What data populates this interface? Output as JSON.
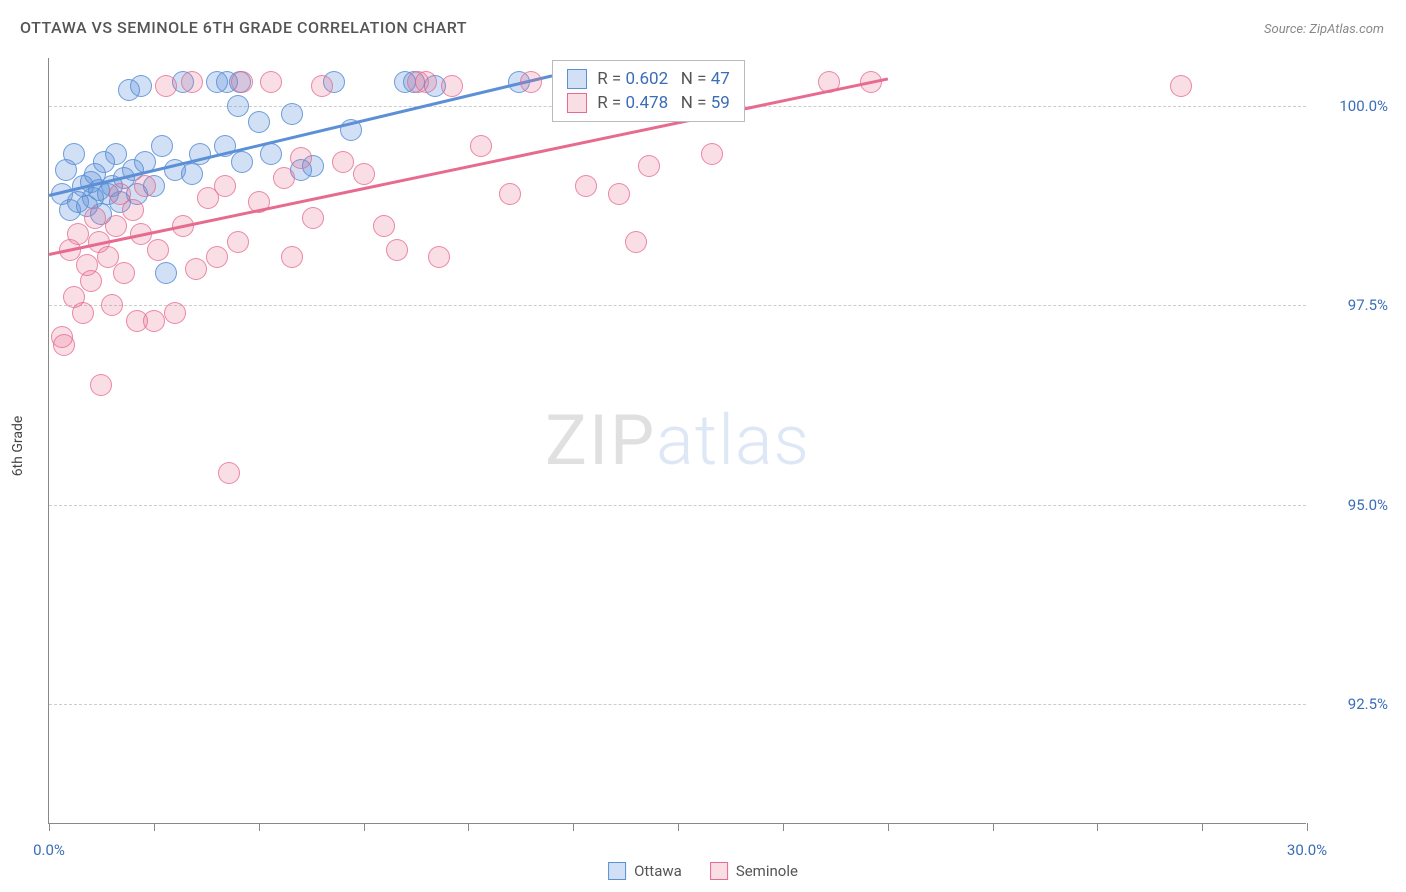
{
  "title": "OTTAWA VS SEMINOLE 6TH GRADE CORRELATION CHART",
  "source": "Source: ZipAtlas.com",
  "y_axis_label": "6th Grade",
  "watermark": {
    "part1": "ZIP",
    "part2": "atlas"
  },
  "chart": {
    "type": "scatter",
    "background_color": "#ffffff",
    "grid_color": "#cccccc",
    "axis_color": "#888888",
    "tick_label_color": "#3b6db8",
    "tick_fontsize": 15,
    "title_fontsize": 16,
    "xlim": [
      0,
      30
    ],
    "ylim": [
      91.0,
      100.6
    ],
    "x_ticks": [
      0,
      2.5,
      5,
      7.5,
      10,
      12.5,
      15,
      17.5,
      20,
      22.5,
      25,
      27.5,
      30
    ],
    "x_tick_labels": {
      "0": "0.0%",
      "30": "30.0%"
    },
    "y_ticks": [
      92.5,
      95.0,
      97.5,
      100.0
    ],
    "y_tick_labels": [
      "92.5%",
      "95.0%",
      "97.5%",
      "100.0%"
    ],
    "marker_radius": 11,
    "marker_fill_opacity": 0.28,
    "marker_stroke_opacity": 0.85,
    "marker_stroke_width": 1.5,
    "trend_line_width": 2.5
  },
  "series": [
    {
      "name": "Ottawa",
      "color": "#5b8fd6",
      "fill": "rgba(91,143,214,0.28)",
      "stroke": "rgba(91,143,214,0.85)",
      "R": "0.602",
      "N": "47",
      "trend": {
        "x1": 0,
        "y1": 98.9,
        "x2": 12.0,
        "y2": 100.4
      },
      "points": [
        [
          0.3,
          98.9
        ],
        [
          0.4,
          99.2
        ],
        [
          0.5,
          98.7
        ],
        [
          0.6,
          99.4
        ],
        [
          0.7,
          98.8
        ],
        [
          0.8,
          99.0
        ],
        [
          0.9,
          98.75
        ],
        [
          1.0,
          99.05
        ],
        [
          1.05,
          98.85
        ],
        [
          1.1,
          99.15
        ],
        [
          1.2,
          98.95
        ],
        [
          1.25,
          98.65
        ],
        [
          1.3,
          99.3
        ],
        [
          1.4,
          98.9
        ],
        [
          1.5,
          99.0
        ],
        [
          1.6,
          99.4
        ],
        [
          1.7,
          98.8
        ],
        [
          1.8,
          99.1
        ],
        [
          1.9,
          100.2
        ],
        [
          2.0,
          99.2
        ],
        [
          2.1,
          98.9
        ],
        [
          2.2,
          100.25
        ],
        [
          2.3,
          99.3
        ],
        [
          2.5,
          99.0
        ],
        [
          2.7,
          99.5
        ],
        [
          2.8,
          97.9
        ],
        [
          3.0,
          99.2
        ],
        [
          3.2,
          100.3
        ],
        [
          3.4,
          99.15
        ],
        [
          3.6,
          99.4
        ],
        [
          4.0,
          100.3
        ],
        [
          4.2,
          99.5
        ],
        [
          4.25,
          100.3
        ],
        [
          4.5,
          100.0
        ],
        [
          4.55,
          100.3
        ],
        [
          4.6,
          99.3
        ],
        [
          5.0,
          99.8
        ],
        [
          5.3,
          99.4
        ],
        [
          5.8,
          99.9
        ],
        [
          6.0,
          99.2
        ],
        [
          6.3,
          99.25
        ],
        [
          6.8,
          100.3
        ],
        [
          7.2,
          99.7
        ],
        [
          8.5,
          100.3
        ],
        [
          8.7,
          100.3
        ],
        [
          9.2,
          100.25
        ],
        [
          11.2,
          100.3
        ]
      ]
    },
    {
      "name": "Seminole",
      "color": "#e76a8f",
      "fill": "rgba(231,106,143,0.22)",
      "stroke": "rgba(231,106,143,0.75)",
      "R": "0.478",
      "N": "59",
      "trend": {
        "x1": 0,
        "y1": 98.15,
        "x2": 20.0,
        "y2": 100.35
      },
      "points": [
        [
          0.3,
          97.1
        ],
        [
          0.35,
          97.0
        ],
        [
          0.5,
          98.2
        ],
        [
          0.6,
          97.6
        ],
        [
          0.7,
          98.4
        ],
        [
          0.8,
          97.4
        ],
        [
          0.9,
          98.0
        ],
        [
          1.0,
          97.8
        ],
        [
          1.1,
          98.6
        ],
        [
          1.2,
          98.3
        ],
        [
          1.25,
          96.5
        ],
        [
          1.4,
          98.1
        ],
        [
          1.5,
          97.5
        ],
        [
          1.6,
          98.5
        ],
        [
          1.7,
          98.9
        ],
        [
          1.8,
          97.9
        ],
        [
          2.0,
          98.7
        ],
        [
          2.1,
          97.3
        ],
        [
          2.2,
          98.4
        ],
        [
          2.3,
          99.0
        ],
        [
          2.5,
          97.3
        ],
        [
          2.6,
          98.2
        ],
        [
          2.8,
          100.25
        ],
        [
          3.0,
          97.4
        ],
        [
          3.2,
          98.5
        ],
        [
          3.4,
          100.3
        ],
        [
          3.5,
          97.95
        ],
        [
          3.8,
          98.85
        ],
        [
          4.0,
          98.1
        ],
        [
          4.2,
          99.0
        ],
        [
          4.3,
          95.4
        ],
        [
          4.5,
          98.3
        ],
        [
          4.6,
          100.3
        ],
        [
          5.0,
          98.8
        ],
        [
          5.3,
          100.3
        ],
        [
          5.6,
          99.1
        ],
        [
          5.8,
          98.1
        ],
        [
          6.0,
          99.35
        ],
        [
          6.3,
          98.6
        ],
        [
          6.5,
          100.25
        ],
        [
          7.0,
          99.3
        ],
        [
          7.5,
          99.15
        ],
        [
          8.0,
          98.5
        ],
        [
          8.3,
          98.2
        ],
        [
          8.8,
          100.3
        ],
        [
          9.0,
          100.3
        ],
        [
          9.3,
          98.1
        ],
        [
          9.6,
          100.25
        ],
        [
          10.3,
          99.5
        ],
        [
          11.0,
          98.9
        ],
        [
          11.5,
          100.3
        ],
        [
          12.8,
          99.0
        ],
        [
          13.6,
          98.9
        ],
        [
          14.0,
          98.3
        ],
        [
          14.3,
          99.25
        ],
        [
          15.8,
          99.4
        ],
        [
          18.6,
          100.3
        ],
        [
          19.6,
          100.3
        ],
        [
          27.0,
          100.25
        ]
      ]
    }
  ],
  "stats_legend": {
    "r_label": "R =",
    "n_label": "N ="
  },
  "bottom_legend": [
    {
      "label": "Ottawa",
      "fill": "rgba(91,143,214,0.28)",
      "stroke": "#5b8fd6"
    },
    {
      "label": "Seminole",
      "fill": "rgba(231,106,143,0.22)",
      "stroke": "#e76a8f"
    }
  ]
}
